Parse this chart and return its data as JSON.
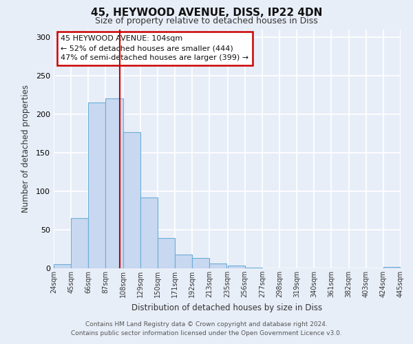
{
  "title": "45, HEYWOOD AVENUE, DISS, IP22 4DN",
  "subtitle": "Size of property relative to detached houses in Diss",
  "xlabel": "Distribution of detached houses by size in Diss",
  "ylabel": "Number of detached properties",
  "bin_edges": [
    24,
    45,
    66,
    87,
    108,
    129,
    150,
    171,
    192,
    213,
    235,
    256,
    277,
    298,
    319,
    340,
    361,
    382,
    403,
    424,
    445
  ],
  "bar_heights": [
    5,
    65,
    215,
    220,
    177,
    92,
    39,
    18,
    13,
    6,
    4,
    1,
    0,
    0,
    0,
    0,
    0,
    0,
    0,
    2
  ],
  "bar_color": "#c8d8f0",
  "bar_edge_color": "#6baed6",
  "property_size": 104,
  "vline_color": "#cc0000",
  "annotation_text": "45 HEYWOOD AVENUE: 104sqm\n← 52% of detached houses are smaller (444)\n47% of semi-detached houses are larger (399) →",
  "annotation_box_color": "#ffffff",
  "annotation_box_edge": "#cc0000",
  "ylim": [
    0,
    310
  ],
  "footer_line1": "Contains HM Land Registry data © Crown copyright and database right 2024.",
  "footer_line2": "Contains public sector information licensed under the Open Government Licence v3.0.",
  "background_color": "#e8eef8",
  "grid_color": "#ffffff",
  "tick_labels": [
    "24sqm",
    "45sqm",
    "66sqm",
    "87sqm",
    "108sqm",
    "129sqm",
    "150sqm",
    "171sqm",
    "192sqm",
    "213sqm",
    "235sqm",
    "256sqm",
    "277sqm",
    "298sqm",
    "319sqm",
    "340sqm",
    "361sqm",
    "382sqm",
    "403sqm",
    "424sqm",
    "445sqm"
  ],
  "title_fontsize": 11,
  "subtitle_fontsize": 9
}
